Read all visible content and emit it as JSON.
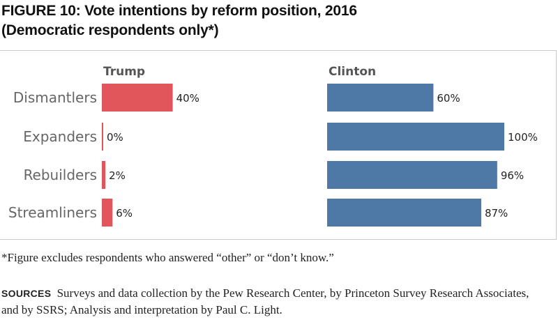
{
  "title": {
    "line1": "FIGURE 10: Vote intentions by reform position, 2016",
    "line2": "(Democratic respondents only*)"
  },
  "chart_data": {
    "type": "bar",
    "orientation": "horizontal",
    "categories": [
      "Dismantlers",
      "Expanders",
      "Rebuilders",
      "Streamliners"
    ],
    "series": [
      {
        "name": "Trump",
        "values": [
          40,
          0,
          2,
          6
        ],
        "labels": [
          "40%",
          "0%",
          "2%",
          "6%"
        ],
        "color": "#e0565b"
      },
      {
        "name": "Clinton",
        "values": [
          60,
          100,
          96,
          87
        ],
        "labels": [
          "60%",
          "100%",
          "96%",
          "87%"
        ],
        "color": "#4e79a7"
      }
    ],
    "xlim": [
      0,
      100
    ],
    "unit": "%",
    "grid": false,
    "layout": "small-multiples side-by-side"
  },
  "footnote": "*Figure excludes respondents who answered “other” or “don’t know.”",
  "sources": {
    "label": "SOURCES",
    "text": "Surveys and data collection by the Pew Research Center, by Princeton Survey Research Associates, and by SSRS; Analysis and interpretation by Paul C. Light."
  }
}
